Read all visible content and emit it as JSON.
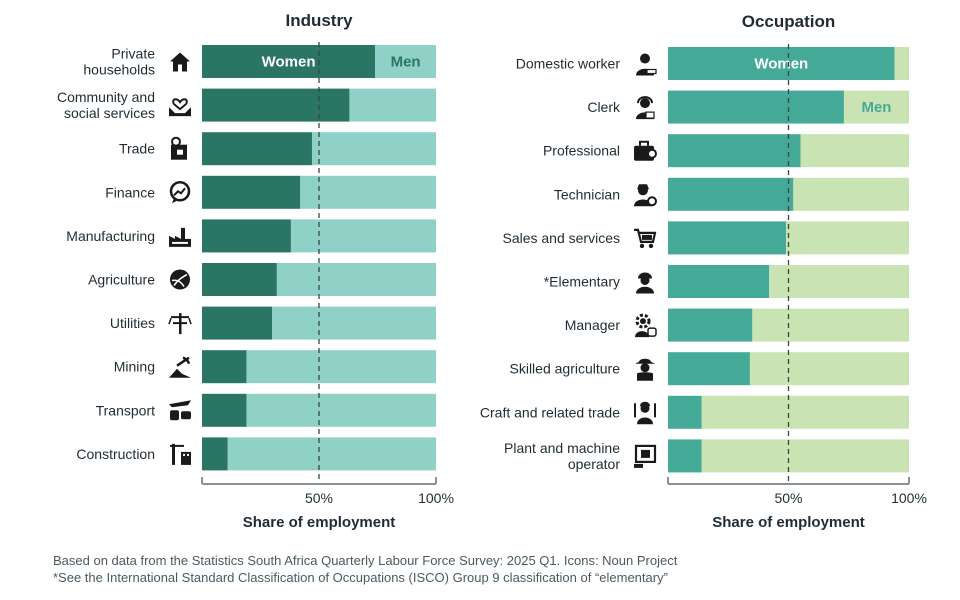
{
  "chart_data": [
    {
      "type": "bar",
      "orientation": "horizontal",
      "stacked": true,
      "title": "Industry",
      "xlabel": "Share of employment",
      "xticks": [
        "50%",
        "100%"
      ],
      "xlim": [
        0,
        100
      ],
      "reference_line": 50,
      "grid": false,
      "colors": {
        "women": "#2b7565",
        "men": "#8fd1c7"
      },
      "categories": [
        [
          "Private",
          "households"
        ],
        [
          "Community and",
          "social services"
        ],
        [
          "Trade"
        ],
        [
          "Finance"
        ],
        [
          "Manufacturing"
        ],
        [
          "Agriculture"
        ],
        [
          "Utilities"
        ],
        [
          "Mining"
        ],
        [
          "Transport"
        ],
        [
          "Construction"
        ]
      ],
      "icons": [
        "house-icon",
        "hands-heart-icon",
        "shop-trade-icon",
        "finance-chat-icon",
        "factory-icon",
        "globe-agriculture-icon",
        "utility-pole-icon",
        "mining-pick-icon",
        "transport-icon",
        "construction-crane-icon"
      ],
      "series": [
        {
          "name": "Women",
          "values": [
            74,
            63,
            47,
            42,
            38,
            32,
            30,
            19,
            19,
            11
          ]
        },
        {
          "name": "Men",
          "values": [
            26,
            37,
            53,
            58,
            62,
            68,
            70,
            81,
            81,
            89
          ]
        }
      ]
    },
    {
      "type": "bar",
      "orientation": "horizontal",
      "stacked": true,
      "title": "Occupation",
      "xlabel": "Share of employment",
      "xticks": [
        "50%",
        "100%"
      ],
      "xlim": [
        0,
        100
      ],
      "reference_line": 50,
      "grid": false,
      "colors": {
        "women": "#45aa98",
        "men": "#c9e3b3"
      },
      "categories": [
        [
          "Domestic worker"
        ],
        [
          "Clerk"
        ],
        [
          "Professional"
        ],
        [
          "Technician"
        ],
        [
          "Sales and services"
        ],
        [
          "*Elementary"
        ],
        [
          "Manager"
        ],
        [
          "Skilled agriculture"
        ],
        [
          "Craft and related trade"
        ],
        [
          "Plant and machine",
          "operator"
        ]
      ],
      "icons": [
        "domestic-worker-icon",
        "clerk-headset-icon",
        "briefcase-icon",
        "technician-icon",
        "shopping-cart-icon",
        "hard-hat-worker-icon",
        "manager-gear-icon",
        "farmer-hat-icon",
        "craft-worker-icon",
        "machine-operator-icon"
      ],
      "series": [
        {
          "name": "Women",
          "values": [
            94,
            73,
            55,
            52,
            49,
            42,
            35,
            34,
            14,
            14
          ]
        },
        {
          "name": "Men",
          "values": [
            6,
            27,
            45,
            48,
            51,
            58,
            65,
            66,
            86,
            86
          ]
        }
      ]
    }
  ],
  "footnotes": {
    "source": "Based on data from the Statistics South Africa Quarterly Labour Force Survey: 2025 Q1. Icons: Noun Project",
    "isco_note": "*See the International Standard Classification of Occupations (ISCO) Group 9 classification of “elementary”"
  }
}
